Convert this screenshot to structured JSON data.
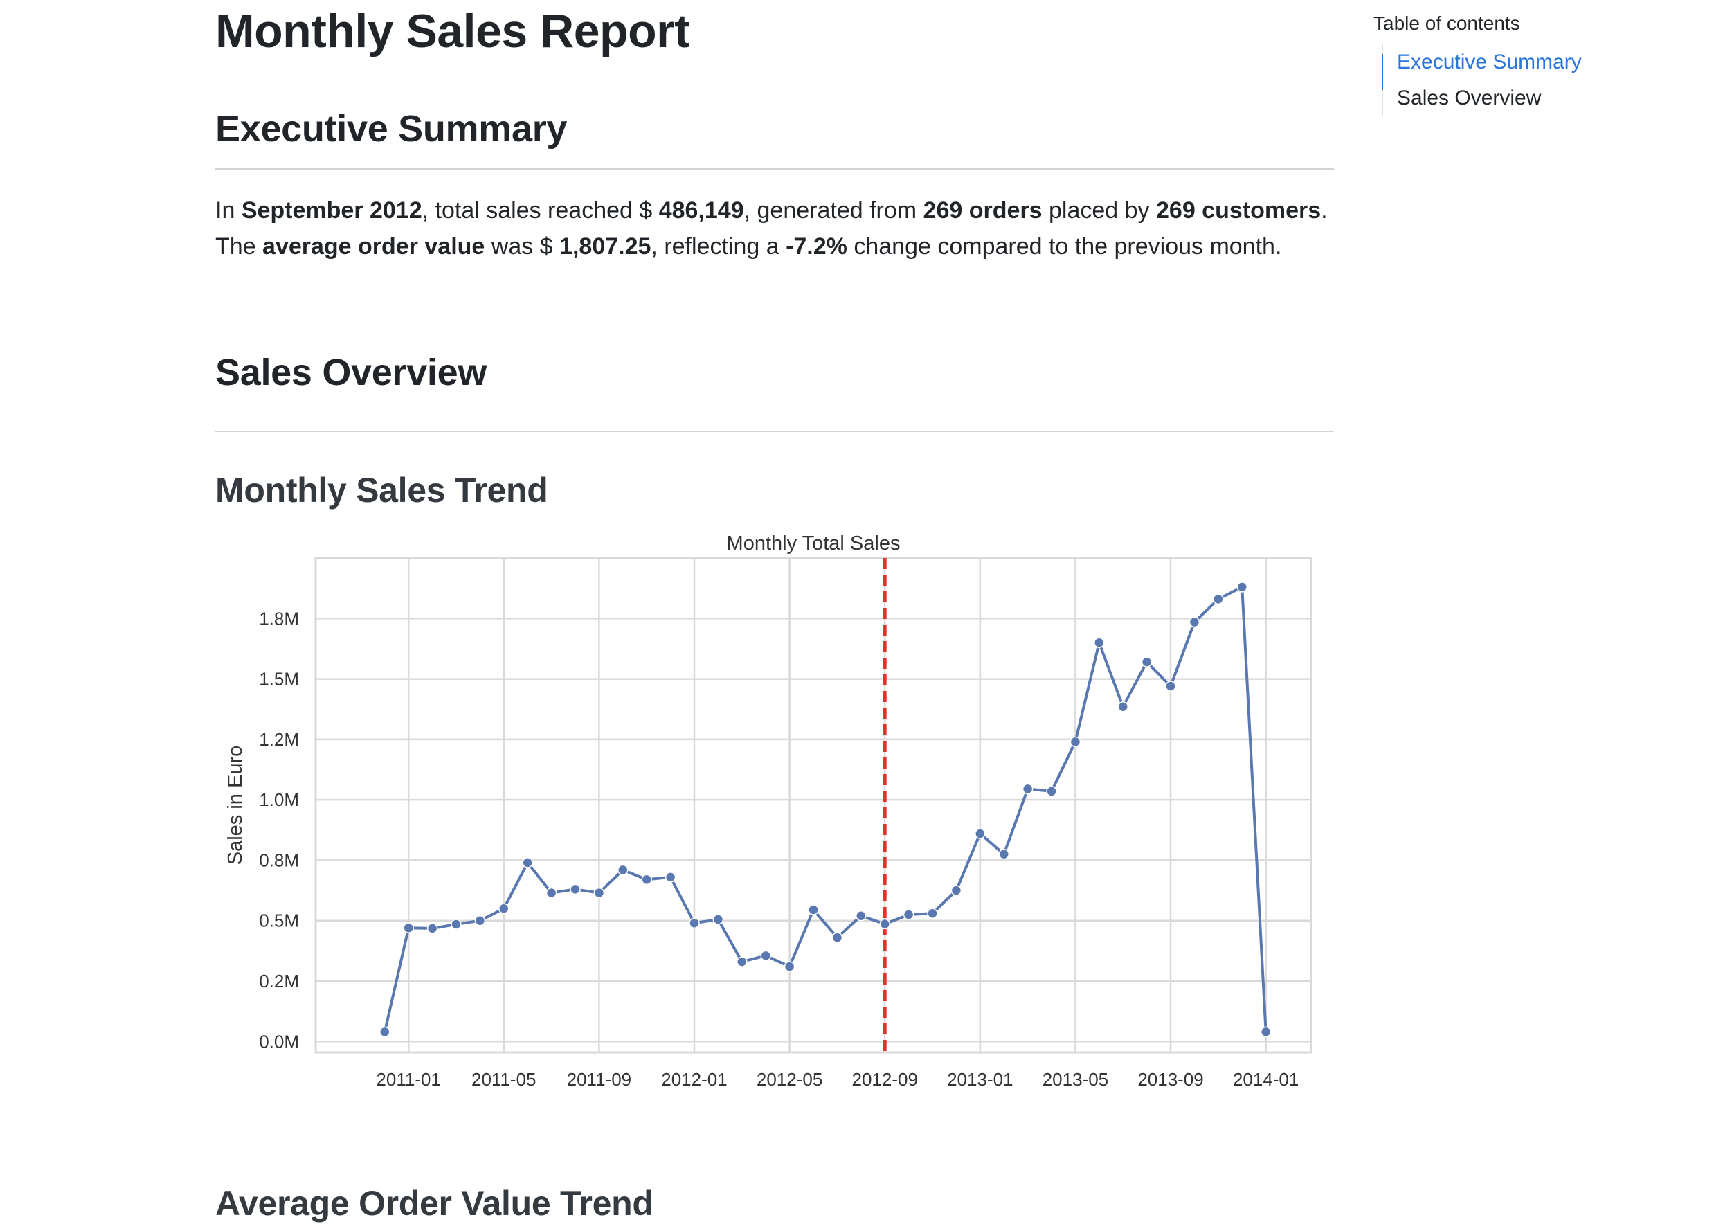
{
  "page": {
    "title": "Monthly Sales Report",
    "sections": {
      "executive_summary": "Executive Summary",
      "sales_overview": "Sales Overview",
      "monthly_sales_trend": "Monthly Sales Trend",
      "average_order_value_trend": "Average Order Value Trend"
    }
  },
  "summary": {
    "p1_a": "In ",
    "month": "September 2012",
    "p1_b": ", total sales reached $ ",
    "total_sales": "486,149",
    "p1_c": ", generated from ",
    "orders": "269 orders",
    "p1_d": " placed by ",
    "customers": "269 customers",
    "p1_e": ".",
    "p2_a": "The ",
    "aov_label": "average order value",
    "p2_b": " was $ ",
    "aov": "1,807.25",
    "p2_c": ", reflecting a ",
    "change": "-7.2%",
    "p2_d": " change compared to the previous month."
  },
  "toc": {
    "title": "Table of contents",
    "items": [
      "Executive Summary",
      "Sales Overview"
    ],
    "active_index": 0
  },
  "colors": {
    "line": "#5a78b0",
    "marker_line": "#e0342a",
    "grid": "#d9d9d9",
    "toc_active": "#2a76dd"
  },
  "chart_data": {
    "type": "line",
    "title": "Monthly Total Sales",
    "xlabel": "",
    "ylabel": "Sales in Euro",
    "x": [
      "2010-12",
      "2011-01",
      "2011-02",
      "2011-03",
      "2011-04",
      "2011-05",
      "2011-06",
      "2011-07",
      "2011-08",
      "2011-09",
      "2011-10",
      "2011-11",
      "2011-12",
      "2012-01",
      "2012-02",
      "2012-03",
      "2012-04",
      "2012-05",
      "2012-06",
      "2012-07",
      "2012-08",
      "2012-09",
      "2012-10",
      "2012-11",
      "2012-12",
      "2013-01",
      "2013-02",
      "2013-03",
      "2013-04",
      "2013-05",
      "2013-06",
      "2013-07",
      "2013-08",
      "2013-09",
      "2013-10",
      "2013-11",
      "2013-12",
      "2014-01"
    ],
    "values": [
      40000,
      470000,
      468000,
      485000,
      500000,
      550000,
      740000,
      615000,
      630000,
      615000,
      710000,
      670000,
      680000,
      490000,
      505000,
      330000,
      355000,
      310000,
      545000,
      430000,
      520000,
      486149,
      525000,
      530000,
      625000,
      860000,
      775000,
      1045000,
      1035000,
      1240000,
      1650000,
      1385000,
      1570000,
      1470000,
      1735000,
      1830000,
      1880000,
      40000
    ],
    "xticks": [
      "2011-01",
      "2011-05",
      "2011-09",
      "2012-01",
      "2012-05",
      "2012-09",
      "2013-01",
      "2013-05",
      "2013-09",
      "2014-01"
    ],
    "yticks": [
      0,
      250000,
      500000,
      750000,
      1000000,
      1250000,
      1500000,
      1750000
    ],
    "ytick_labels": [
      "0.0M",
      "0.2M",
      "0.5M",
      "0.8M",
      "1.0M",
      "1.2M",
      "1.5M",
      "1.8M"
    ],
    "ylim": [
      -45000,
      2000000
    ],
    "reference_line": "2012-09",
    "grid": true
  }
}
